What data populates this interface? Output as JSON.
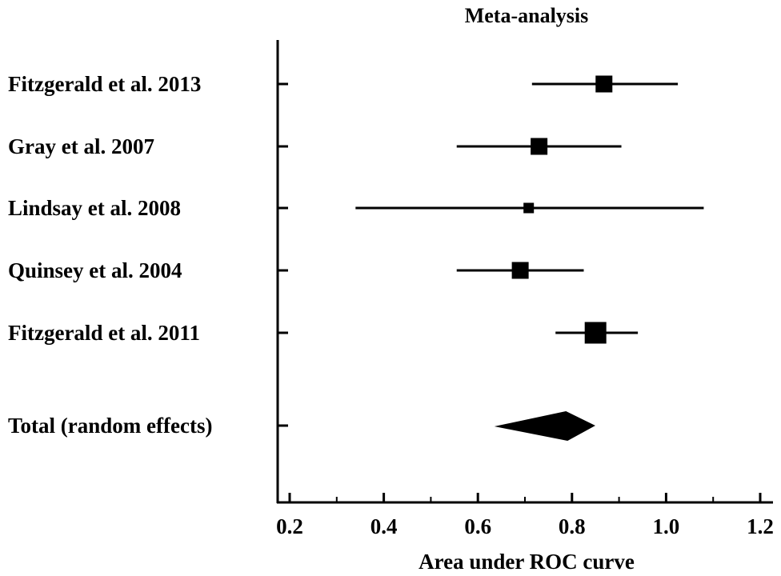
{
  "chart_data": {
    "type": "forest",
    "title": "Meta-analysis",
    "xlabel": "Area under ROC curve",
    "xlim": [
      0.17,
      1.23
    ],
    "xticks": [
      "0.2",
      "0.4",
      "0.6",
      "0.8",
      "1.0",
      "1.2"
    ],
    "xtick_values": [
      0.2,
      0.4,
      0.6,
      0.8,
      1.0,
      1.2
    ],
    "minor_tick_values": [
      0.3,
      0.5,
      0.7,
      0.9,
      1.1
    ],
    "grid": false,
    "studies": [
      {
        "label": "Fitzgerald et al. 2013",
        "estimate": 0.868,
        "lower": 0.715,
        "upper": 1.025,
        "weight": 21
      },
      {
        "label": "Gray et al. 2007",
        "estimate": 0.73,
        "lower": 0.555,
        "upper": 0.905,
        "weight": 21
      },
      {
        "label": "Lindsay et al. 2008",
        "estimate": 0.708,
        "lower": 0.34,
        "upper": 1.08,
        "weight": 13
      },
      {
        "label": "Quinsey et al. 2004",
        "estimate": 0.69,
        "lower": 0.555,
        "upper": 0.825,
        "weight": 21
      },
      {
        "label": "Fitzgerald et al. 2011",
        "estimate": 0.85,
        "lower": 0.765,
        "upper": 0.94,
        "weight": 27
      }
    ],
    "total": {
      "label": "Total (random effects)",
      "estimate": 0.794,
      "lower": 0.72,
      "upper": 0.87
    },
    "colors": {
      "marker": "#000000",
      "axis": "#000000"
    }
  }
}
